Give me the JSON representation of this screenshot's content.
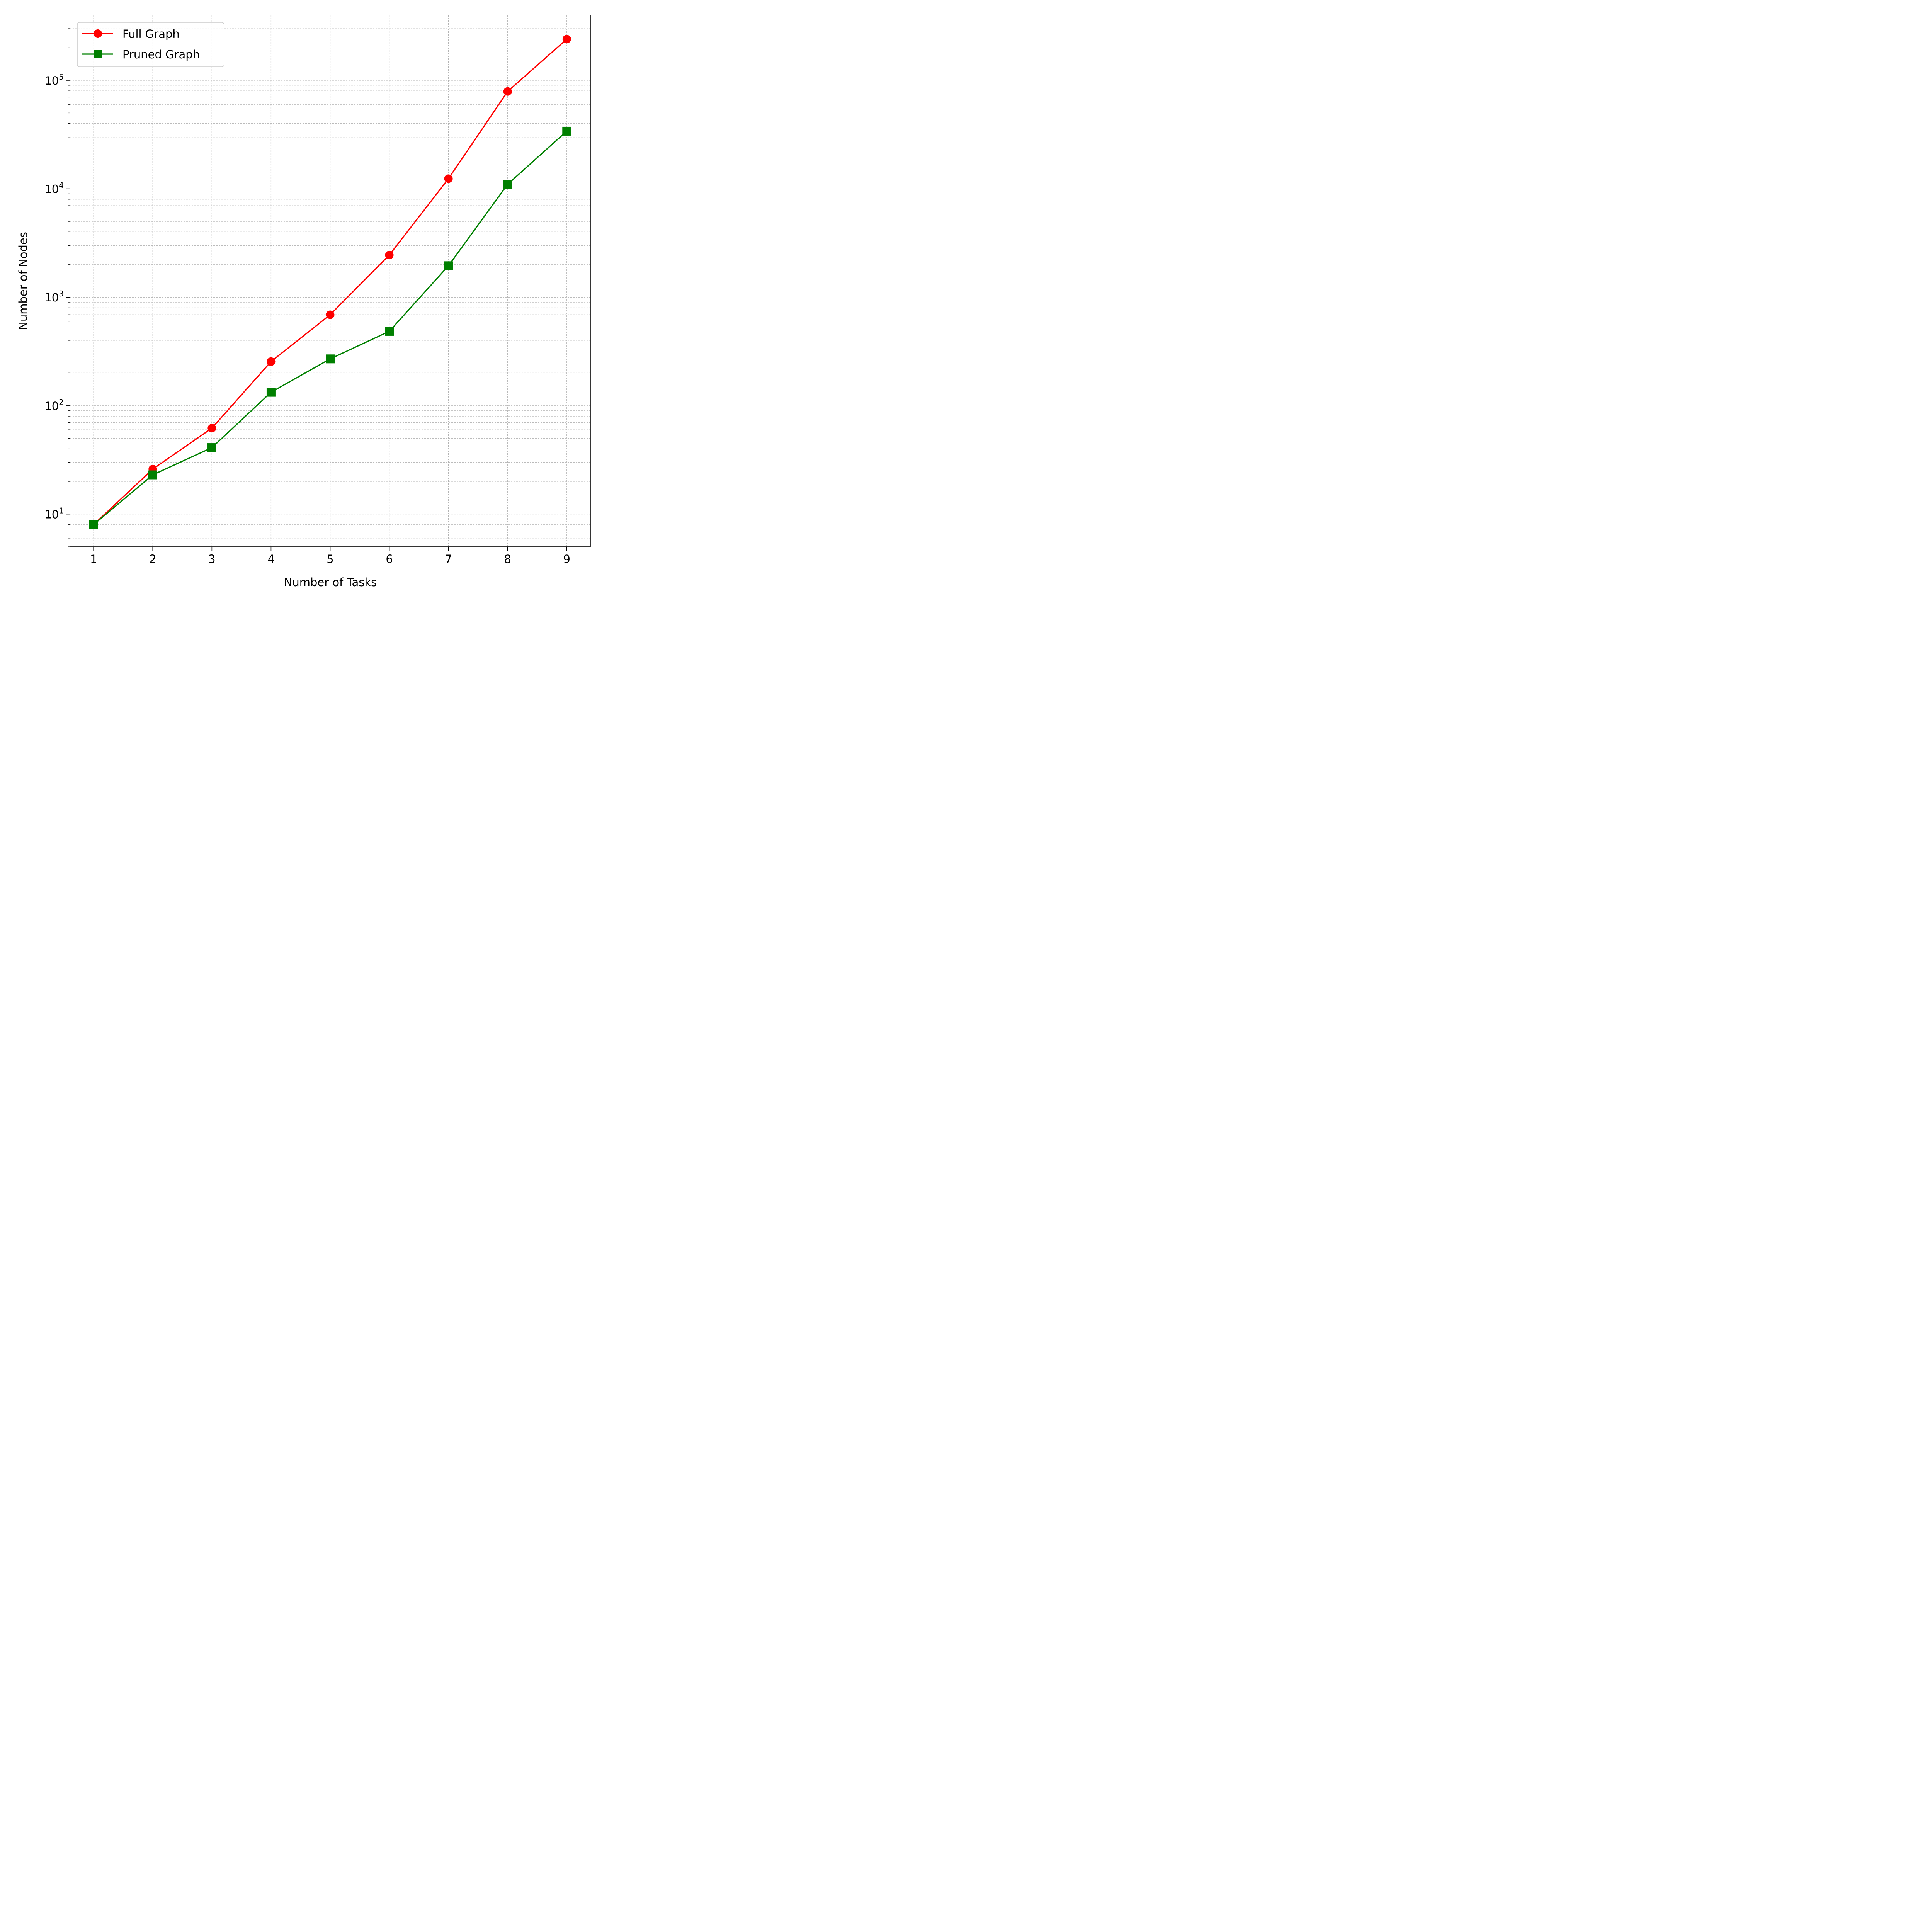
{
  "chart_data": {
    "type": "line",
    "xlabel": "Number of Tasks",
    "ylabel": "Number of Nodes",
    "x": [
      1,
      2,
      3,
      4,
      5,
      6,
      7,
      8,
      9
    ],
    "xlim": [
      0.6,
      9.4
    ],
    "ylim": [
      5,
      400000
    ],
    "yscale": "log",
    "grid": true,
    "legend_position": "top-left",
    "x_tick_labels": [
      "1",
      "2",
      "3",
      "4",
      "5",
      "6",
      "7",
      "8",
      "9"
    ],
    "y_tick_labels": [
      {
        "value": 10,
        "base": "10",
        "exp": "1"
      },
      {
        "value": 100,
        "base": "10",
        "exp": "2"
      },
      {
        "value": 1000,
        "base": "10",
        "exp": "3"
      },
      {
        "value": 10000,
        "base": "10",
        "exp": "4"
      },
      {
        "value": 100000,
        "base": "10",
        "exp": "5"
      }
    ],
    "series": [
      {
        "name": "Full Graph",
        "color": "#ff0000",
        "marker": "circle",
        "values": [
          8,
          26,
          62,
          255,
          690,
          2450,
          12400,
          79000,
          240000
        ]
      },
      {
        "name": "Pruned Graph",
        "color": "#008000",
        "marker": "square",
        "values": [
          8,
          23,
          41,
          133,
          270,
          485,
          1950,
          11000,
          34000
        ]
      }
    ]
  }
}
